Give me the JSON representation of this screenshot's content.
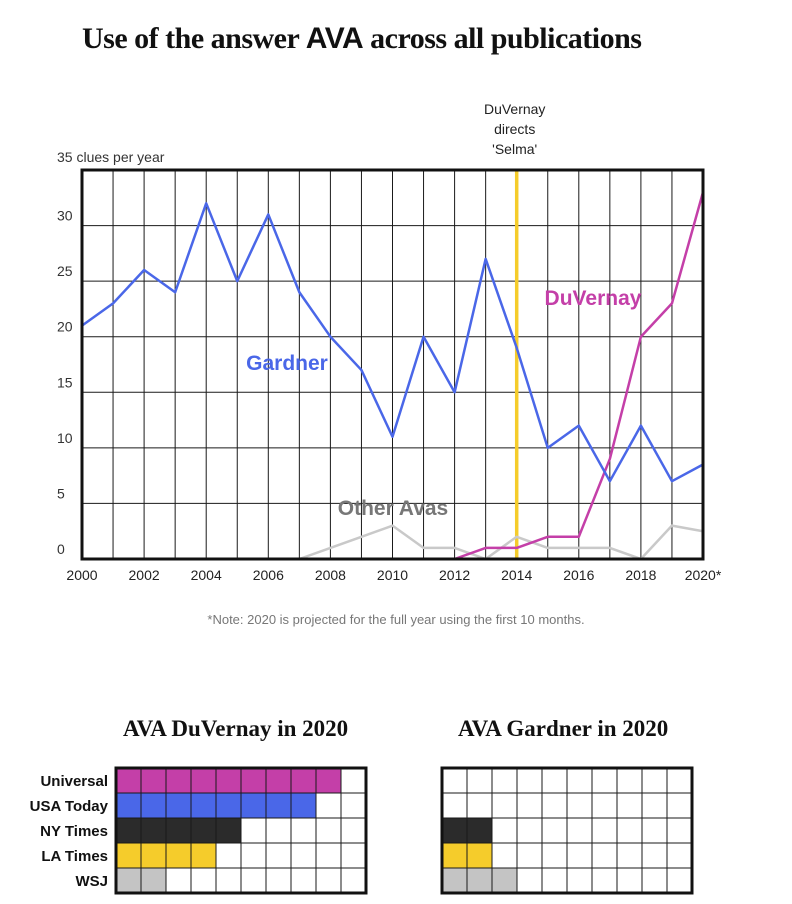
{
  "header": {
    "title_before": "Use of the answer",
    "title_word": "AVA",
    "title_after": "across all publications"
  },
  "chart_data": [
    {
      "type": "line",
      "title": "Use of the answer AVA across all publications",
      "ylabel": "clues per year",
      "y_top_label": "35 clues per year",
      "ylim": [
        0,
        35
      ],
      "yticks": [
        "0",
        "5",
        "10",
        "15",
        "20",
        "25",
        "30"
      ],
      "xlim": [
        2000,
        2020
      ],
      "xticks": [
        "2000",
        "2002",
        "2004",
        "2006",
        "2008",
        "2010",
        "2012",
        "2014",
        "2016",
        "2018",
        "2020*"
      ],
      "grid": true,
      "series": [
        {
          "name": "Gardner",
          "color": "#4a67e8",
          "x": [
            2000,
            2001,
            2002,
            2003,
            2004,
            2005,
            2006,
            2007,
            2008,
            2009,
            2010,
            2011,
            2012,
            2013,
            2014,
            2015,
            2016,
            2017,
            2018,
            2019,
            2020
          ],
          "values": [
            21,
            23,
            26,
            24,
            32,
            25,
            31,
            24,
            20,
            17,
            11,
            20,
            15,
            27,
            19,
            10,
            12,
            7,
            12,
            7,
            8.5
          ]
        },
        {
          "name": "DuVernay",
          "color": "#c43fa8",
          "x": [
            2012,
            2013,
            2014,
            2015,
            2016,
            2017,
            2018,
            2019,
            2020
          ],
          "values": [
            0,
            1,
            1,
            2,
            2,
            9,
            20,
            23,
            33
          ]
        },
        {
          "name": "Other Avas",
          "color": "#c9c9c9",
          "x": [
            2007,
            2008,
            2009,
            2010,
            2011,
            2012,
            2013,
            2014,
            2015,
            2016,
            2017,
            2018,
            2019,
            2020
          ],
          "values": [
            0,
            1,
            2,
            3,
            1,
            1,
            0,
            2,
            1,
            1,
            1,
            0,
            3,
            2.5
          ]
        }
      ],
      "annotations": [
        {
          "x": 2014,
          "label": "DuVernay directs 'Selma'",
          "lines": [
            "DuVernay",
            "directs",
            "'Selma'"
          ],
          "color": "#f5cc2b"
        }
      ],
      "note": "*Note: 2020 is projected for the full year using the first 10 months."
    },
    {
      "type": "table",
      "title": "AVA DuVernay in 2020",
      "categories": [
        "Universal",
        "USA Today",
        "NY Times",
        "LA Times",
        "WSJ"
      ],
      "values": [
        9,
        8,
        5,
        4,
        2
      ],
      "max_cells": 10,
      "colors": [
        "#c43fa8",
        "#4a67e8",
        "#2b2b2b",
        "#f5cc2b",
        "#c4c4c4"
      ]
    },
    {
      "type": "table",
      "title": "AVA Gardner in 2020",
      "categories": [
        "Universal",
        "USA Today",
        "NY Times",
        "LA Times",
        "WSJ"
      ],
      "values": [
        0,
        0,
        2,
        2,
        3
      ],
      "max_cells": 10,
      "colors": [
        "#c43fa8",
        "#4a67e8",
        "#2b2b2b",
        "#f5cc2b",
        "#c4c4c4"
      ]
    }
  ]
}
